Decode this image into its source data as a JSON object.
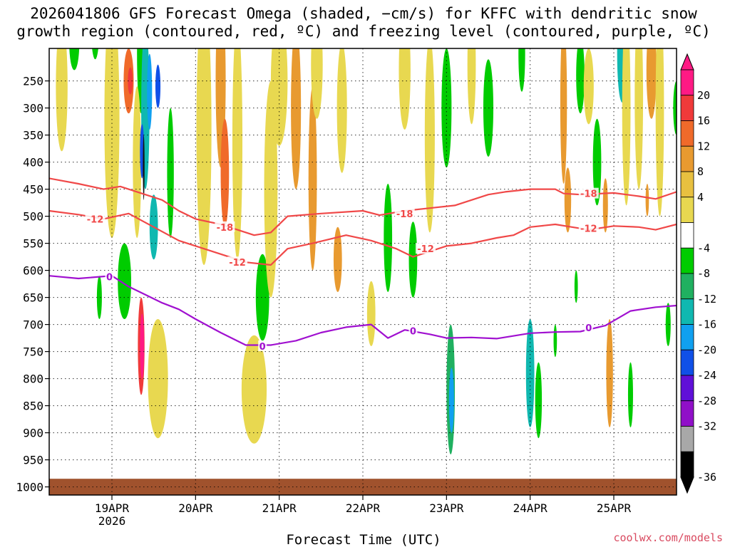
{
  "chart_data": {
    "type": "heatmap",
    "title_line1": "2026041806 GFS Forecast Omega (shaded, −cm/s) for KFFC with dendritic snow",
    "title_line2": "growth region (contoured, red, ºC) and freezing level (contoured, purple, ºC)",
    "xlabel": "Forecast Time (UTC)",
    "credit": "coolwx.com/models",
    "x_ticks": [
      {
        "label": "19APR",
        "sub": "2026",
        "day": 19
      },
      {
        "label": "20APR",
        "sub": "",
        "day": 20
      },
      {
        "label": "21APR",
        "sub": "",
        "day": 21
      },
      {
        "label": "22APR",
        "sub": "",
        "day": 22
      },
      {
        "label": "23APR",
        "sub": "",
        "day": 23
      },
      {
        "label": "24APR",
        "sub": "",
        "day": 24
      },
      {
        "label": "25APR",
        "sub": "",
        "day": 25
      }
    ],
    "xlim": [
      18.25,
      25.75
    ],
    "y_ticks": [
      250,
      300,
      350,
      400,
      450,
      500,
      550,
      600,
      650,
      700,
      750,
      800,
      850,
      900,
      950,
      1000
    ],
    "y_tick_labels": [
      "250",
      "300",
      "350",
      "400",
      "450",
      "500",
      "550",
      "600",
      "650",
      "700",
      "750",
      "800",
      "850",
      "900",
      "950",
      "1000"
    ],
    "ylim": [
      190,
      1015
    ],
    "surface_pressure": 985,
    "colorbar": {
      "labels": [
        "20",
        "16",
        "12",
        "8",
        "4",
        "-4",
        "-8",
        "-12",
        "-16",
        "-20",
        "-24",
        "-28",
        "-32",
        "-36"
      ],
      "colors": [
        "#ff1a84",
        "#f03a3a",
        "#f06a2a",
        "#e89a30",
        "#e8c040",
        "#e8d850",
        "#ffffff",
        "#00cc00",
        "#20b060",
        "#10b8b0",
        "#10a0f0",
        "#1050e8",
        "#6010d8",
        "#9010c8",
        "#a8a8a8",
        "#000000"
      ]
    },
    "contours": [
      {
        "label": "-18",
        "color": "#f04848",
        "points": [
          [
            18.25,
            430
          ],
          [
            18.6,
            440
          ],
          [
            18.9,
            450
          ],
          [
            19.1,
            445
          ],
          [
            19.4,
            460
          ],
          [
            19.6,
            470
          ],
          [
            19.8,
            490
          ],
          [
            20.0,
            505
          ],
          [
            20.3,
            515
          ],
          [
            20.5,
            525
          ],
          [
            20.7,
            535
          ],
          [
            20.9,
            530
          ],
          [
            21.1,
            500
          ],
          [
            21.5,
            495
          ],
          [
            22.0,
            490
          ],
          [
            22.2,
            498
          ],
          [
            22.5,
            490
          ],
          [
            22.8,
            485
          ],
          [
            23.1,
            480
          ],
          [
            23.3,
            470
          ],
          [
            23.5,
            460
          ],
          [
            23.7,
            455
          ],
          [
            24.0,
            450
          ],
          [
            24.3,
            450
          ],
          [
            24.4,
            458
          ],
          [
            24.6,
            460
          ],
          [
            25.0,
            457
          ],
          [
            25.3,
            463
          ],
          [
            25.5,
            468
          ],
          [
            25.75,
            455
          ]
        ],
        "label_at": [
          [
            20.35,
            520
          ],
          [
            22.5,
            495
          ],
          [
            24.7,
            458
          ]
        ]
      },
      {
        "label": "-12",
        "color": "#f04848",
        "points": [
          [
            18.25,
            490
          ],
          [
            18.6,
            497
          ],
          [
            18.9,
            505
          ],
          [
            19.2,
            495
          ],
          [
            19.5,
            520
          ],
          [
            19.8,
            545
          ],
          [
            20.1,
            560
          ],
          [
            20.4,
            575
          ],
          [
            20.6,
            585
          ],
          [
            20.9,
            590
          ],
          [
            21.1,
            560
          ],
          [
            21.4,
            550
          ],
          [
            21.8,
            535
          ],
          [
            22.1,
            545
          ],
          [
            22.4,
            560
          ],
          [
            22.6,
            575
          ],
          [
            22.8,
            565
          ],
          [
            23.0,
            555
          ],
          [
            23.3,
            550
          ],
          [
            23.6,
            540
          ],
          [
            23.8,
            535
          ],
          [
            24.0,
            520
          ],
          [
            24.3,
            515
          ],
          [
            24.5,
            520
          ],
          [
            24.7,
            525
          ],
          [
            25.0,
            518
          ],
          [
            25.3,
            520
          ],
          [
            25.5,
            525
          ],
          [
            25.75,
            515
          ]
        ],
        "label_at": [
          [
            18.8,
            505
          ],
          [
            20.5,
            585
          ],
          [
            22.75,
            560
          ],
          [
            24.7,
            522
          ]
        ]
      },
      {
        "label": "0",
        "color": "#a010d0",
        "points": [
          [
            18.25,
            610
          ],
          [
            18.6,
            615
          ],
          [
            19.0,
            610
          ],
          [
            19.2,
            630
          ],
          [
            19.4,
            645
          ],
          [
            19.6,
            660
          ],
          [
            19.8,
            672
          ],
          [
            20.0,
            690
          ],
          [
            20.3,
            715
          ],
          [
            20.6,
            738
          ],
          [
            20.9,
            738
          ],
          [
            21.2,
            730
          ],
          [
            21.5,
            715
          ],
          [
            21.8,
            705
          ],
          [
            22.1,
            700
          ],
          [
            22.3,
            725
          ],
          [
            22.5,
            710
          ],
          [
            22.8,
            718
          ],
          [
            23.0,
            725
          ],
          [
            23.3,
            724
          ],
          [
            23.6,
            726
          ],
          [
            24.0,
            716
          ],
          [
            24.3,
            714
          ],
          [
            24.6,
            713
          ],
          [
            24.9,
            702
          ],
          [
            25.2,
            675
          ],
          [
            25.5,
            668
          ],
          [
            25.75,
            665
          ]
        ],
        "label_at": [
          [
            18.97,
            612
          ],
          [
            20.8,
            740
          ],
          [
            22.6,
            712
          ],
          [
            24.7,
            706
          ]
        ]
      }
    ]
  }
}
